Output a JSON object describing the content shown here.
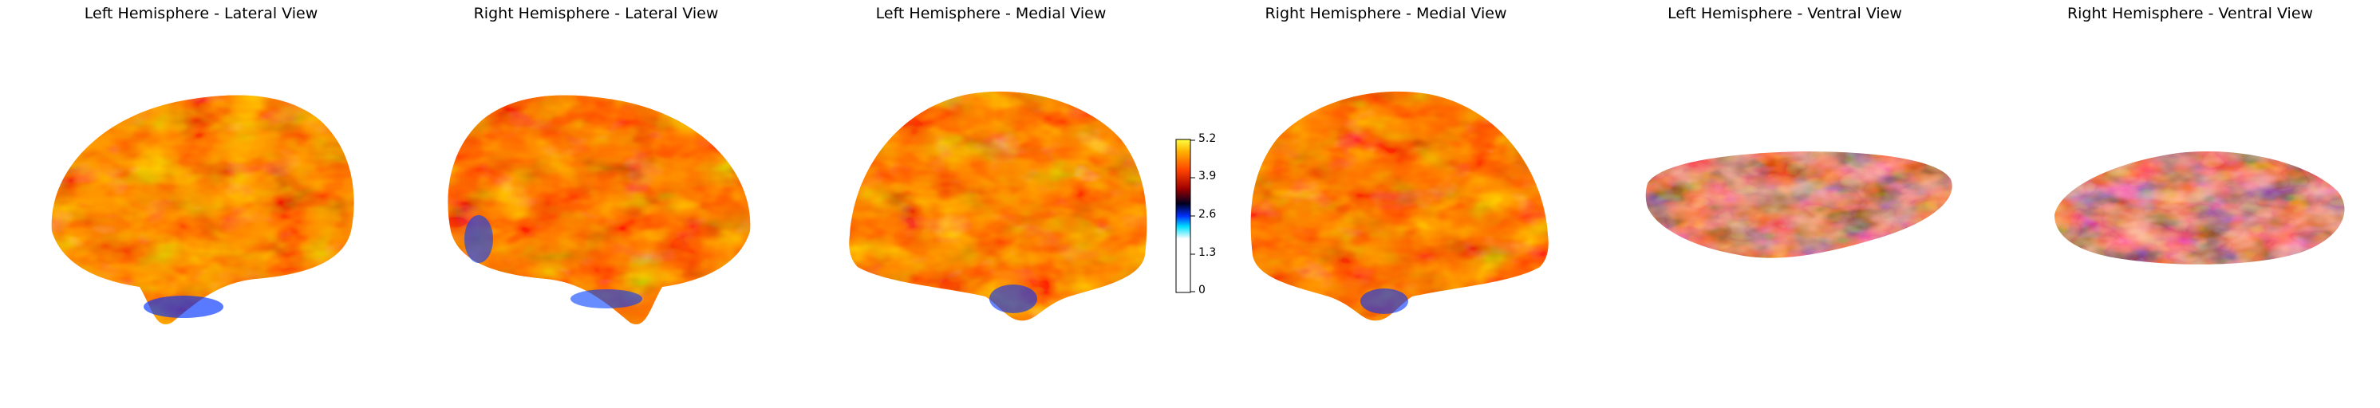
{
  "figure": {
    "panels": [
      {
        "title": "Left Hemisphere - Lateral View",
        "view": "lateral",
        "hemisphere": "left"
      },
      {
        "title": "Right Hemisphere - Lateral View",
        "view": "lateral",
        "hemisphere": "right"
      },
      {
        "title": "Left Hemisphere - Medial View",
        "view": "medial",
        "hemisphere": "left"
      },
      {
        "title": "Right Hemisphere - Medial View",
        "view": "medial",
        "hemisphere": "right"
      },
      {
        "title": "Left Hemisphere - Ventral View",
        "view": "ventral",
        "hemisphere": "left"
      },
      {
        "title": "Right Hemisphere - Ventral View",
        "view": "ventral",
        "hemisphere": "right"
      }
    ],
    "colorbar": {
      "ticks": [
        "5.2",
        "3.9",
        "2.6",
        "1.3",
        "0"
      ],
      "colormap": "cold_hot",
      "range": [
        0,
        5.2
      ],
      "stops": [
        "#ffffff",
        "#00e0ff",
        "#0030ff",
        "#000020",
        "#a00000",
        "#ff4400",
        "#ffb000",
        "#ffff40"
      ]
    }
  }
}
